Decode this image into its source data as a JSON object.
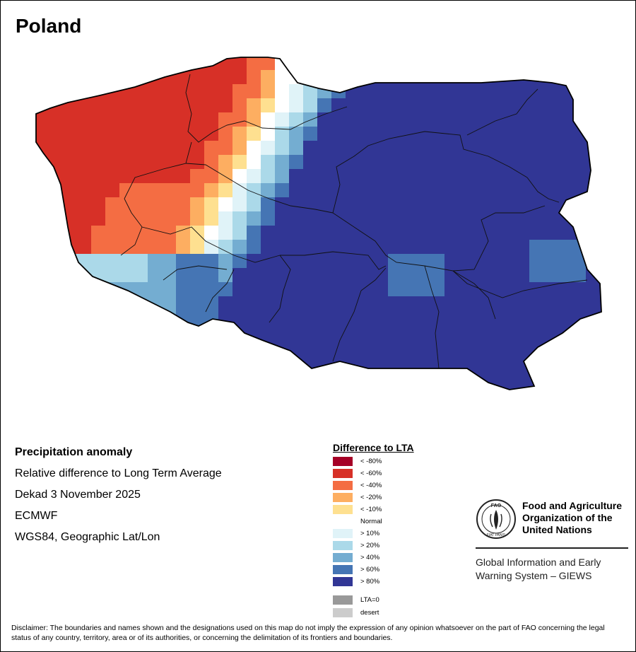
{
  "title": "Poland",
  "info": {
    "heading": "Precipitation anomaly",
    "description": "Relative difference to Long Term Average",
    "period": "Dekad 3 November 2025",
    "model": "ECMWF",
    "projection": "WGS84, Geographic Lat/Lon"
  },
  "legend": {
    "title": "Difference to LTA",
    "classes": [
      {
        "label": "< -80%",
        "color": "#a50026"
      },
      {
        "label": "< -60%",
        "color": "#d73027"
      },
      {
        "label": "< -40%",
        "color": "#f46d43"
      },
      {
        "label": "< -20%",
        "color": "#fdae61"
      },
      {
        "label": "< -10%",
        "color": "#fee090"
      },
      {
        "label": "Normal",
        "color": "#ffffff"
      },
      {
        "label": "> 10%",
        "color": "#e0f3f8"
      },
      {
        "label": "> 20%",
        "color": "#abd9e9"
      },
      {
        "label": "> 40%",
        "color": "#74add1"
      },
      {
        "label": "> 60%",
        "color": "#4575b4"
      },
      {
        "label": "> 80%",
        "color": "#313695"
      }
    ],
    "extra": [
      {
        "label": "LTA=0",
        "color": "#999999"
      },
      {
        "label": "desert",
        "color": "#cccccc"
      }
    ]
  },
  "map": {
    "country": "Poland",
    "anomaly_field": {
      "grid_cols": 41,
      "grid_rows": 24,
      "description_west_to_east": "Negative anomalies (-20% to -80%) over the northwest, near-normal band in the west-centre, strong positive anomalies (> 80%) over central, eastern and southern areas"
    }
  },
  "logo": {
    "org_line1": "Food and Agriculture",
    "org_line2": "Organization of the",
    "org_line3": "United Nations",
    "emblem_text_top": "FAO",
    "emblem_text_bottom": "FIAT PANIS",
    "system_line1": "Global Information and Early",
    "system_line2": "Warning System – GIEWS"
  },
  "disclaimer": "Disclaimer: The boundaries and names shown and the designations used on this map do not imply the expression of any opinion whatsoever on the part of FAO concerning the legal status of any country, territory, area or of its authorities, or concerning the delimitation of its frontiers and boundaries."
}
